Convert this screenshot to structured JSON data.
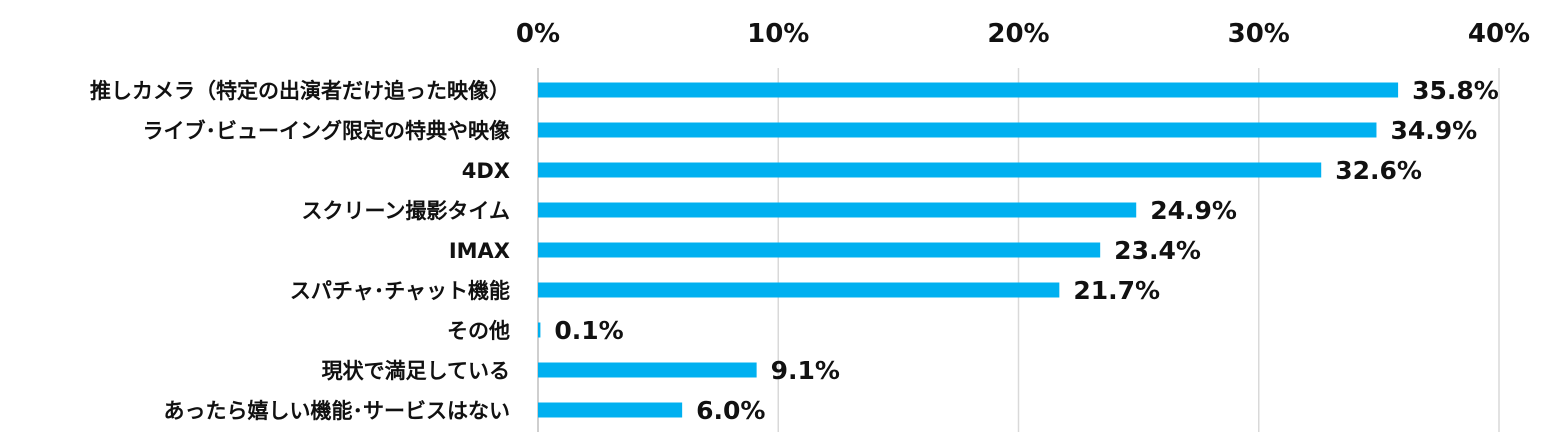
{
  "chart_data": {
    "type": "bar",
    "orientation": "horizontal",
    "categories": [
      "推しカメラ（特定の出演者だけ追った映像）",
      "ライブ･ビューイング限定の特典や映像",
      "4DX",
      "スクリーン撮影タイム",
      "IMAX",
      "スパチャ･チャット機能",
      "その他",
      "現状で満足している",
      "あったら嬉しい機能･サービスはない"
    ],
    "values": [
      35.8,
      34.9,
      32.6,
      24.9,
      23.4,
      21.7,
      0.1,
      9.1,
      6.0
    ],
    "value_labels": [
      "35.8%",
      "34.9%",
      "32.6%",
      "24.9%",
      "23.4%",
      "21.7%",
      "0.1%",
      "9.1%",
      "6.0%"
    ],
    "xlim": [
      0,
      40
    ],
    "ticks": [
      0,
      10,
      20,
      30,
      40
    ],
    "tick_labels": [
      "0%",
      "10%",
      "20%",
      "30%",
      "40%"
    ],
    "axis_position": "top",
    "grid": true,
    "bar_color": "#00b0f0",
    "title": "",
    "xlabel": "",
    "ylabel": ""
  }
}
